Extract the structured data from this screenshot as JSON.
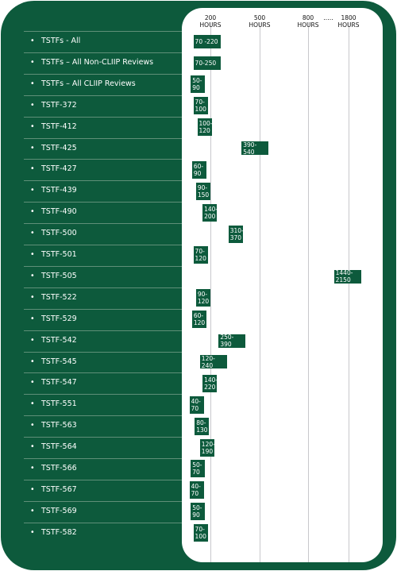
{
  "chart_data": {
    "type": "bar",
    "axis_ticks": [
      {
        "value": 200,
        "line1": "200",
        "line2": "HOURS"
      },
      {
        "value": 500,
        "line1": "500",
        "line2": "HOURS"
      },
      {
        "value": 800,
        "line1": "800",
        "line2": "HOURS"
      },
      {
        "value": 1800,
        "line1": "1800",
        "line2": "HOURS"
      }
    ],
    "axis_break": ".....",
    "bullet": "•",
    "categories": [
      {
        "name": "TSTFs - All",
        "range": [
          70,
          220
        ],
        "label": "70 -220"
      },
      {
        "name": "TSTFs – All Non-CLIIP Reviews",
        "range": [
          70,
          250
        ],
        "label": "70-250"
      },
      {
        "name": "TSTFs – All CLIIP Reviews",
        "range": [
          50,
          90
        ],
        "label": "50-\n90"
      },
      {
        "name": "TSTF-372",
        "range": [
          70,
          100
        ],
        "label": "70-\n100"
      },
      {
        "name": "TSTF-412",
        "range": [
          100,
          120
        ],
        "label": "100-\n120"
      },
      {
        "name": "TSTF-425",
        "range": [
          390,
          540
        ],
        "label": "390-540"
      },
      {
        "name": "TSTF-427",
        "range": [
          60,
          90
        ],
        "label": "60-\n90"
      },
      {
        "name": "TSTF-439",
        "range": [
          90,
          150
        ],
        "label": "90-\n150"
      },
      {
        "name": "TSTF-490",
        "range": [
          140,
          200
        ],
        "label": "140-\n200"
      },
      {
        "name": "TSTF-500",
        "range": [
          310,
          370
        ],
        "label": "310-\n370"
      },
      {
        "name": "TSTF-501",
        "range": [
          70,
          120
        ],
        "label": "70-\n120"
      },
      {
        "name": "TSTF-505",
        "range": [
          1440,
          2150
        ],
        "label": "1440-2150"
      },
      {
        "name": "TSTF-522",
        "range": [
          90,
          120
        ],
        "label": "90-\n120"
      },
      {
        "name": "TSTF-529",
        "range": [
          60,
          120
        ],
        "label": "60-\n120"
      },
      {
        "name": "TSTF-542",
        "range": [
          250,
          390
        ],
        "label": "250-390"
      },
      {
        "name": "TSTF-545",
        "range": [
          120,
          240
        ],
        "label": "120-240"
      },
      {
        "name": "TSTF-547",
        "range": [
          140,
          220
        ],
        "label": "140-\n220"
      },
      {
        "name": "TSTF-551",
        "range": [
          40,
          70
        ],
        "label": "40-\n70"
      },
      {
        "name": "TSTF-563",
        "range": [
          80,
          130
        ],
        "label": "80-\n130"
      },
      {
        "name": "TSTF-564",
        "range": [
          120,
          190
        ],
        "label": "120-\n190"
      },
      {
        "name": "TSTF-566",
        "range": [
          50,
          70
        ],
        "label": "50-\n70"
      },
      {
        "name": "TSTF-567",
        "range": [
          40,
          70
        ],
        "label": "40-\n70"
      },
      {
        "name": "TSTF-569",
        "range": [
          50,
          90
        ],
        "label": "50-\n90"
      },
      {
        "name": "TSTF-582",
        "range": [
          70,
          100
        ],
        "label": "70-\n100"
      }
    ],
    "colors": {
      "frame": "#0d5a3c",
      "bar": "#0d5a3c",
      "panel": "#ffffff",
      "gridline": "#c8c8cc"
    }
  }
}
